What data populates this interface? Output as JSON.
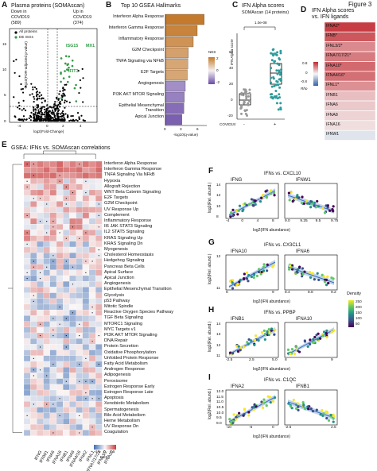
{
  "figure_label": "Figure 3",
  "panelA": {
    "letter": "A",
    "title": "Plasma proteins (SOMAscan)",
    "down_label": "Down in",
    "down_label2": "COVID19",
    "down_count": "(589)",
    "up_label": "Up in",
    "up_label2": "COVID19",
    "up_count": "(374)",
    "legend_all": "All proteins",
    "legend_de": "DE ISGs",
    "genes": [
      "ISG15",
      "MX1",
      "IFIT3"
    ],
    "ylabel": "-log10(FDR-adjusted p-value)",
    "xlabel": "log2(Fold-Change)",
    "yticks": [
      "0",
      "5",
      "10",
      "15"
    ],
    "xticks": [
      "-4",
      "0",
      "2",
      "4"
    ]
  },
  "panelB": {
    "letter": "B",
    "title": "Top 10 GSEA Hallmarks",
    "xlabel": "-log10(q-value)",
    "xticks": [
      "0",
      "3",
      "6"
    ],
    "legend_title": "NES",
    "legend_ticks": [
      "2",
      "0",
      "-2"
    ],
    "colors": {
      "pos": "#c47a2c",
      "neg": "#6a4aa8"
    },
    "chart_data": {
      "type": "bar",
      "categories": [
        "Interferon Alpha Response",
        "Interferon Gamma Response",
        "Inflammatory Response",
        "G2M Checkpoint",
        "TNFA Signaling via NFkB",
        "E2F Targets",
        "Angiogenesis",
        "PI3K AKT MTOR Signaling",
        "Epithelial Mesenchymal Transition",
        "Apical Junction"
      ],
      "values": [
        7.8,
        6.4,
        5.6,
        4.6,
        4.5,
        4.4,
        4.0,
        3.8,
        3.7,
        3.3
      ],
      "nes": [
        2.4,
        2.2,
        1.9,
        1.6,
        1.5,
        1.5,
        -1.4,
        -1.6,
        -1.9,
        -2.1
      ]
    }
  },
  "panelC": {
    "letter": "C",
    "title": "IFN Alpha scores",
    "subtitle": "SOMAscan (14 proteins)",
    "pvalue": "1.0e-08",
    "ylabel": "IFN Alpha score",
    "yticks": [
      "-20",
      "0",
      "20",
      "40",
      "60"
    ],
    "xaxis_label": "COVID19:",
    "groups": [
      "-",
      "+"
    ]
  },
  "panelD": {
    "letter": "D",
    "title": "IFN Alpha scores",
    "title2": "vs. IFN ligands",
    "legend_ticks": [
      "0.8",
      "0",
      "-0.8"
    ],
    "legend_title": "Rho",
    "ligands": [
      {
        "name": "IFNA2*",
        "rho": 0.72
      },
      {
        "name": "IFNB*",
        "rho": 0.62
      },
      {
        "name": "IFNL3/2*",
        "rho": 0.42
      },
      {
        "name": "IFNA7/17/21*",
        "rho": 0.48
      },
      {
        "name": "IFNA10*",
        "rho": 0.55
      },
      {
        "name": "IFNA4/16*",
        "rho": 0.52
      },
      {
        "name": "IFNL1*",
        "rho": 0.4
      },
      {
        "name": "IFNB1",
        "rho": 0.22
      },
      {
        "name": "IFNA6",
        "rho": 0.18
      },
      {
        "name": "IFNA8",
        "rho": 0.14
      },
      {
        "name": "IFNA16",
        "rho": 0.1
      },
      {
        "name": "IFNW1",
        "rho": -0.1
      }
    ]
  },
  "panelE": {
    "letter": "E",
    "title": "GSEA: IFNs vs. SOMAscan correlations",
    "legend_ticks": [
      "-4.5",
      "0",
      "4.5"
    ],
    "legend_title": "NES",
    "columns": [
      "IFNG",
      "IFNW1",
      "IFNA6",
      "IFNA16",
      "IFNB1",
      "IFNA8",
      "IFNA4/16",
      "IFNA2",
      "IFNL1",
      "IFNA7/17/21",
      "IFNL3/2",
      "IFNA10"
    ],
    "rows": [
      "Interferon Alpha Response",
      "Interferon Gamma Response",
      "TNFA Signaling Via NFkB",
      "Hypoxia",
      "Allograft Rejection",
      "WNT Beta Catenin Signaling",
      "E2F Targets",
      "G2M Checkpoint",
      "UV Response Up",
      "Complement",
      "Inflammatory Response",
      "Il6 JAK STAT3 Signaling",
      "IL2 STAT5 Signaling",
      "KRAS Signaling Up",
      "KRAS Signaling Dn",
      "Myogenesis",
      "Cholesterol Homeostasis",
      "Hedgehog Signaling",
      "Pancreas Beta Cells",
      "Apical Surface",
      "Apical Junction",
      "Angiogenesis",
      "Epithelial Mesenchymal Transition",
      "Glycolysis",
      "p53 Pathway",
      "Mitotic Spindle",
      "Reactive Oxygen Species Pathway",
      "TGF Beta Signaling",
      "MTORC1 Signaling",
      "MYC Targets v1",
      "PI3K AKT MTOR Signaling",
      "DNA Repair",
      "Protein Secretion",
      "Oxidative Phosphorylation",
      "Unfolded Protein Response",
      "Fatty Acid Metabolism",
      "Androgen Response",
      "Adipogenesis",
      "Peroxisome",
      "Estrogen Response Early",
      "Estrogen Response Late",
      "Apoptosis",
      "Xenobiotic Metabolism",
      "Spermatogenesis",
      "Bile Acid Metabolism",
      "Heme Metabolism",
      "UV Response Dn",
      "Coagulation"
    ]
  },
  "scatter": {
    "density_title": "Density",
    "density_ticks": [
      "250",
      "200",
      "150",
      "100",
      "50"
    ],
    "ylabel": "log2(Rel. abund.)",
    "xlabel": "log2(IFN abundance)",
    "panels": [
      {
        "letter": "F",
        "title": "IFNs vs. CXCL10",
        "left": "IFNG",
        "right": "IFNW1",
        "lx": [
          "-4",
          "0",
          "4",
          "8"
        ],
        "rx": [
          "9.0",
          "9.25",
          "9.5",
          "9.75"
        ],
        "ly": [
          "8",
          "10",
          "12",
          "14"
        ]
      },
      {
        "letter": "G",
        "title": "IFNs vs. CX3CL1",
        "left": "IFNA10",
        "right": "IFNA6",
        "lx": [
          "8",
          "9"
        ],
        "rx": [
          "8.4",
          "8.8",
          "9.2"
        ],
        "ly": [
          "11",
          "12"
        ]
      },
      {
        "letter": "H",
        "title": "IFNs vs. PPBP",
        "left": "IFNB1",
        "right": "IFNA10",
        "lx": [
          "-2.5",
          "2.5",
          "5.0"
        ],
        "rx": [
          "8",
          "9"
        ],
        "ly": [
          "11",
          "12",
          "13",
          "14"
        ]
      },
      {
        "letter": "I",
        "title": "IFNs vs. C1QC",
        "left": "IFNA2",
        "right": "IFNB1",
        "lx": [
          "-10",
          "-5",
          "0"
        ],
        "rx": [
          "-2.5",
          "2.5"
        ],
        "ly": [
          "9.0",
          "9.5",
          "10.0",
          "10.5",
          "11.0",
          "11.5",
          "12.0"
        ]
      }
    ]
  }
}
